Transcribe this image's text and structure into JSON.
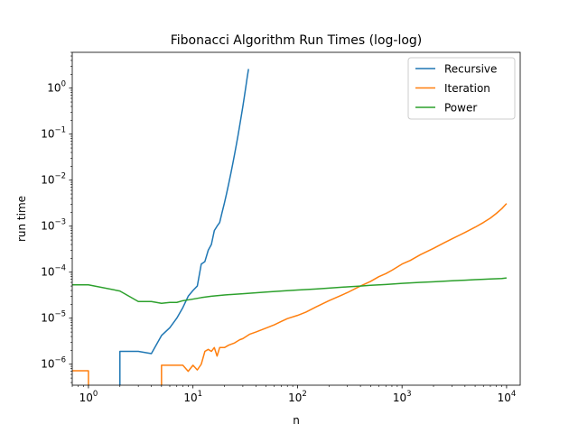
{
  "chart_data": {
    "type": "line",
    "title": "Fibonacci Algorithm Run Times (log-log)",
    "xlabel": "n",
    "ylabel": "run time",
    "xscale": "log",
    "yscale": "log",
    "xlim": [
      0.7,
      13500
    ],
    "ylim": [
      3.5e-07,
      6.0
    ],
    "xticks": [
      1,
      10,
      100,
      1000,
      10000
    ],
    "xtick_labels": [
      {
        "base": "10",
        "exp": "0"
      },
      {
        "base": "10",
        "exp": "1"
      },
      {
        "base": "10",
        "exp": "2"
      },
      {
        "base": "10",
        "exp": "3"
      },
      {
        "base": "10",
        "exp": "4"
      }
    ],
    "yticks": [
      1e-06,
      1e-05,
      0.0001,
      0.001,
      0.01,
      0.1,
      1
    ],
    "ytick_labels": [
      {
        "base": "10",
        "exp": "−6"
      },
      {
        "base": "10",
        "exp": "−5"
      },
      {
        "base": "10",
        "exp": "−4"
      },
      {
        "base": "10",
        "exp": "−3"
      },
      {
        "base": "10",
        "exp": "−2"
      },
      {
        "base": "10",
        "exp": "−1"
      },
      {
        "base": "10",
        "exp": "0"
      }
    ],
    "grid": false,
    "legend_position": "top-right",
    "series": [
      {
        "name": "Recursive",
        "color": "#1f77b4",
        "x": [
          2,
          2,
          3,
          4,
          5,
          6,
          7,
          8,
          9,
          10,
          11,
          12,
          13,
          14,
          15,
          16,
          17,
          18,
          19,
          20,
          21,
          22,
          23,
          24,
          25,
          26,
          27,
          28,
          29,
          30,
          31,
          32,
          33,
          34
        ],
        "y": [
          3e-07,
          1.9e-06,
          1.9e-06,
          1.7e-06,
          4.2e-06,
          6.2e-06,
          1e-05,
          1.7e-05,
          3e-05,
          4e-05,
          5e-05,
          0.00015,
          0.00017,
          0.0003,
          0.0004,
          0.0008,
          0.001,
          0.0012,
          0.002,
          0.0032,
          0.0052,
          0.0085,
          0.0138,
          0.0225,
          0.0365,
          0.059,
          0.095,
          0.155,
          0.25,
          0.4,
          0.65,
          1.05,
          1.7,
          2.6
        ]
      },
      {
        "name": "Iteration",
        "color": "#ff7f0e",
        "x": [
          0.7,
          1,
          1,
          5,
          5,
          6,
          7,
          8,
          9,
          10,
          11,
          12,
          13,
          14,
          15,
          16,
          17,
          18,
          20,
          22,
          25,
          28,
          30,
          35,
          40,
          50,
          60,
          70,
          80,
          100,
          120,
          150,
          200,
          250,
          300,
          400,
          500,
          600,
          700,
          800,
          1000,
          1200,
          1500,
          2000,
          2500,
          3000,
          4000,
          5000,
          6000,
          7000,
          8000,
          9000,
          10000
        ],
        "y": [
          7.2e-07,
          7.2e-07,
          3e-07,
          3e-07,
          9.5e-07,
          9.5e-07,
          9.5e-07,
          9.5e-07,
          7e-07,
          9.5e-07,
          7.5e-07,
          1e-06,
          1.9e-06,
          2.1e-06,
          1.9e-06,
          2.3e-06,
          1.5e-06,
          2.3e-06,
          2.3e-06,
          2.6e-06,
          2.9e-06,
          3.4e-06,
          3.6e-06,
          4.5e-06,
          5e-06,
          6.1e-06,
          7.2e-06,
          8.5e-06,
          9.8e-06,
          1.15e-05,
          1.35e-05,
          1.75e-05,
          2.4e-05,
          3e-05,
          3.6e-05,
          5e-05,
          6.3e-05,
          8e-05,
          9.3e-05,
          0.00011,
          0.00015,
          0.00018,
          0.00024,
          0.00033,
          0.00043,
          0.00053,
          0.00073,
          0.00095,
          0.0012,
          0.0015,
          0.0019,
          0.0024,
          0.0031
        ]
      },
      {
        "name": "Power",
        "color": "#2ca02c",
        "x": [
          0.7,
          1,
          2,
          3,
          4,
          5,
          6,
          7,
          8,
          9,
          10,
          12,
          15,
          20,
          30,
          50,
          70,
          100,
          150,
          200,
          300,
          400,
          500,
          700,
          1000,
          1500,
          2000,
          3000,
          4000,
          5000,
          6000,
          7000,
          8000,
          9000,
          10000
        ],
        "y": [
          5.3e-05,
          5.3e-05,
          3.9e-05,
          2.3e-05,
          2.3e-05,
          2.1e-05,
          2.2e-05,
          2.2e-05,
          2.4e-05,
          2.5e-05,
          2.6e-05,
          2.8e-05,
          3e-05,
          3.2e-05,
          3.4e-05,
          3.7e-05,
          3.9e-05,
          4.1e-05,
          4.3e-05,
          4.5e-05,
          4.8e-05,
          5e-05,
          5.2e-05,
          5.4e-05,
          5.7e-05,
          6e-05,
          6.2e-05,
          6.5e-05,
          6.7e-05,
          6.9e-05,
          7e-05,
          7.1e-05,
          7.2e-05,
          7.3e-05,
          7.5e-05
        ]
      }
    ]
  }
}
